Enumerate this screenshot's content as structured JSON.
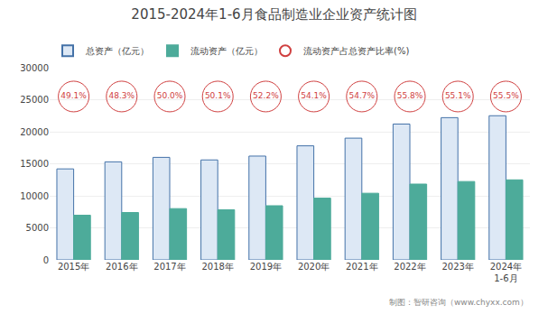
{
  "chart_data": {
    "type": "bar",
    "title": "2015-2024年1-6月食品制造业企业资产统计图",
    "categories": [
      "2015年",
      "2016年",
      "2017年",
      "2018年",
      "2019年",
      "2020年",
      "2021年",
      "2022年",
      "2023年",
      "2024年\n1-6月"
    ],
    "series": [
      {
        "name": "总资产（亿元）",
        "type": "bar",
        "color": "#dde8f5",
        "values": [
          14200,
          15300,
          16000,
          15600,
          16200,
          17800,
          19000,
          21200,
          22200,
          22500
        ]
      },
      {
        "name": "流动资产（亿元）",
        "type": "bar",
        "color": "#4dab9a",
        "values": [
          6970,
          7390,
          8000,
          7820,
          8450,
          9640,
          10400,
          11830,
          12230,
          12490
        ]
      },
      {
        "name": "流动资产占总资产比率(%)",
        "type": "scatter",
        "marker": "circle",
        "color": "#d04040",
        "values": [
          49.1,
          48.3,
          50.0,
          50.1,
          52.2,
          54.1,
          54.7,
          55.8,
          55.1,
          55.5
        ],
        "value_labels": [
          "49.1%",
          "48.3%",
          "50.0%",
          "50.1%",
          "52.2%",
          "54.1%",
          "54.7%",
          "55.8%",
          "55.1%",
          "55.5%"
        ]
      }
    ],
    "ylim": [
      0,
      30000
    ],
    "yticks": [
      0,
      5000,
      10000,
      15000,
      20000,
      25000,
      30000
    ],
    "grid": true,
    "legend": "upper left",
    "annotations": [
      "制图：智研咨询（www.chyxx.com）"
    ]
  }
}
